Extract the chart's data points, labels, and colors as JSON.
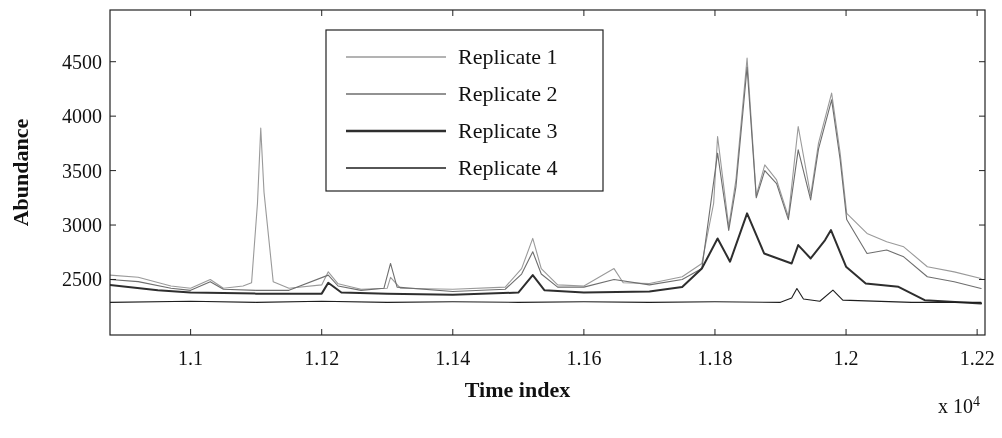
{
  "chart_data": {
    "type": "line",
    "xlabel": "Time index",
    "ylabel": "Abundance",
    "annotations": [
      "x 10$^{4}$"
    ],
    "xlim": [
      1.0877,
      1.2212
    ],
    "ylim": [
      1990,
      4975
    ],
    "xticks": [
      1.1,
      1.12,
      1.14,
      1.16,
      1.18,
      1.2,
      1.22
    ],
    "yticks": [
      2500,
      3000,
      3500,
      4000,
      4500
    ],
    "grid": false,
    "legend": "top",
    "marker": "none",
    "line_style": "solid",
    "series": [
      {
        "name": "Replicate 1",
        "color": "#9a9a9a",
        "x": [
          1.0877,
          1.092,
          1.097,
          1.1,
          1.103,
          1.105,
          1.108,
          1.1093,
          1.1102,
          1.1107,
          1.1112,
          1.1126,
          1.115,
          1.12,
          1.121,
          1.1225,
          1.126,
          1.13,
          1.1305,
          1.132,
          1.14,
          1.148,
          1.1505,
          1.1522,
          1.1535,
          1.156,
          1.16,
          1.1646,
          1.166,
          1.17,
          1.175,
          1.178,
          1.1798,
          1.1804,
          1.1821,
          1.1832,
          1.1849,
          1.1863,
          1.1876,
          1.1894,
          1.1912,
          1.1927,
          1.1946,
          1.1958,
          1.1978,
          1.1991,
          1.2001,
          1.2032,
          1.2062,
          1.2088,
          1.2124,
          1.2165,
          1.2206
        ],
        "values": [
          2540,
          2520,
          2440,
          2420,
          2500,
          2420,
          2440,
          2470,
          3200,
          3890,
          3300,
          2480,
          2420,
          2450,
          2570,
          2460,
          2410,
          2420,
          2520,
          2420,
          2410,
          2430,
          2600,
          2877,
          2600,
          2450,
          2440,
          2600,
          2470,
          2463,
          2525,
          2647,
          3200,
          3813,
          2985,
          3414,
          4534,
          3270,
          3552,
          3414,
          3077,
          3905,
          3270,
          3752,
          4212,
          3660,
          3107,
          2923,
          2847,
          2800,
          2617,
          2570,
          2509
        ]
      },
      {
        "name": "Replicate 2",
        "color": "#6e6e6e",
        "x": [
          1.0877,
          1.092,
          1.097,
          1.1,
          1.103,
          1.105,
          1.11,
          1.115,
          1.121,
          1.1225,
          1.126,
          1.1295,
          1.1305,
          1.1315,
          1.14,
          1.148,
          1.1505,
          1.1522,
          1.1535,
          1.156,
          1.16,
          1.1646,
          1.17,
          1.175,
          1.178,
          1.1804,
          1.1821,
          1.1832,
          1.1849,
          1.1863,
          1.1876,
          1.1894,
          1.1912,
          1.1927,
          1.1946,
          1.1958,
          1.1978,
          1.1991,
          1.2001,
          1.2032,
          1.2062,
          1.2088,
          1.2124,
          1.2165,
          1.2206
        ],
        "values": [
          2500,
          2480,
          2420,
          2400,
          2480,
          2410,
          2400,
          2400,
          2540,
          2440,
          2400,
          2420,
          2647,
          2430,
          2390,
          2410,
          2550,
          2755,
          2550,
          2430,
          2430,
          2500,
          2450,
          2500,
          2600,
          3660,
          2950,
          3350,
          4450,
          3250,
          3500,
          3380,
          3050,
          3690,
          3230,
          3700,
          4150,
          3600,
          3050,
          2739,
          2770,
          2708,
          2525,
          2479,
          2417
        ]
      },
      {
        "name": "Replicate 3",
        "color": "#2e2e2e",
        "x": [
          1.0877,
          1.095,
          1.1,
          1.11,
          1.12,
          1.121,
          1.123,
          1.13,
          1.14,
          1.15,
          1.1522,
          1.154,
          1.16,
          1.17,
          1.175,
          1.178,
          1.1804,
          1.1823,
          1.1849,
          1.1875,
          1.1917,
          1.1927,
          1.1946,
          1.1968,
          1.1977,
          1.2,
          1.203,
          1.208,
          1.212,
          1.2206
        ],
        "values": [
          2450,
          2400,
          2380,
          2370,
          2370,
          2470,
          2380,
          2370,
          2360,
          2380,
          2540,
          2400,
          2380,
          2390,
          2430,
          2600,
          2877,
          2663,
          3107,
          2739,
          2647,
          2816,
          2693,
          2862,
          2954,
          2617,
          2463,
          2433,
          2310,
          2279
        ]
      },
      {
        "name": "Replicate 4",
        "color": "#1e1e1e",
        "x": [
          1.0877,
          1.1,
          1.11,
          1.12,
          1.13,
          1.14,
          1.15,
          1.16,
          1.17,
          1.18,
          1.19,
          1.1917,
          1.1925,
          1.1935,
          1.196,
          1.198,
          1.1995,
          1.21,
          1.2206
        ],
        "values": [
          2290,
          2300,
          2290,
          2300,
          2290,
          2295,
          2290,
          2295,
          2290,
          2295,
          2290,
          2330,
          2417,
          2320,
          2300,
          2402,
          2310,
          2290,
          2290
        ]
      }
    ]
  }
}
